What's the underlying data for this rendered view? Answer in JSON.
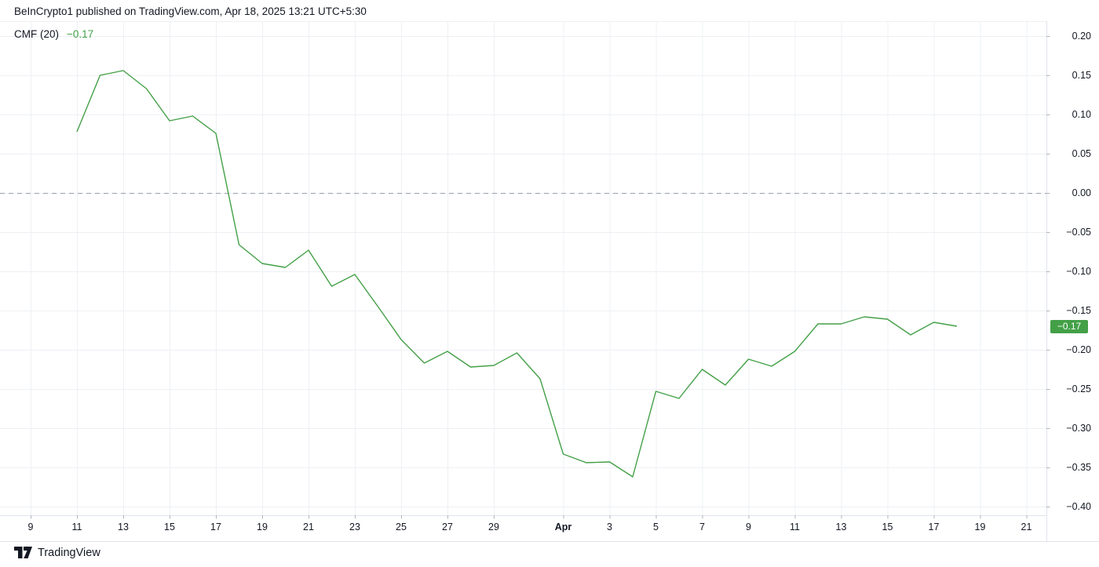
{
  "header": {
    "attribution": "BeInCrypto1 published on TradingView.com, Apr 18, 2025 13:21 UTC+5:30"
  },
  "legend": {
    "indicator": "CMF (20)",
    "value": "−0.17"
  },
  "axis_badge": {
    "text": "−0.17"
  },
  "footer": {
    "brand": "TradingView"
  },
  "colors": {
    "background": "#ffffff",
    "text": "#131722",
    "line": "#43a047",
    "legend_value": "#43a047",
    "badge_bg": "#43a047",
    "badge_text": "#ffffff",
    "grid": "#eef0f4",
    "axis_border": "#e0e3eb",
    "tick": "#b2b5be",
    "zero_line": "#9b9fa8"
  },
  "chart_data": {
    "type": "line",
    "title": "CMF (20)",
    "legend_position": "top-left",
    "grid": true,
    "zero_line_dashed": true,
    "last_value": -0.17,
    "y_axis": {
      "side": "right",
      "min": -0.4,
      "max": 0.2,
      "step": 0.05,
      "tick_values": [
        0.2,
        0.15,
        0.1,
        0.05,
        0.0,
        -0.05,
        -0.1,
        -0.15,
        -0.2,
        -0.25,
        -0.3,
        -0.35,
        -0.4
      ]
    },
    "x_axis": {
      "range": "Mar 9 – Apr 21, 2025",
      "ticks": [
        {
          "label": "9",
          "day": 0
        },
        {
          "label": "11",
          "day": 2
        },
        {
          "label": "13",
          "day": 4
        },
        {
          "label": "15",
          "day": 6
        },
        {
          "label": "17",
          "day": 8
        },
        {
          "label": "19",
          "day": 10
        },
        {
          "label": "21",
          "day": 12
        },
        {
          "label": "23",
          "day": 14
        },
        {
          "label": "25",
          "day": 16
        },
        {
          "label": "27",
          "day": 18
        },
        {
          "label": "29",
          "day": 20
        },
        {
          "label": "Apr",
          "day": 23,
          "bold": true
        },
        {
          "label": "3",
          "day": 25
        },
        {
          "label": "5",
          "day": 27
        },
        {
          "label": "7",
          "day": 29
        },
        {
          "label": "9",
          "day": 31
        },
        {
          "label": "11",
          "day": 33
        },
        {
          "label": "13",
          "day": 35
        },
        {
          "label": "15",
          "day": 37
        },
        {
          "label": "17",
          "day": 39
        },
        {
          "label": "19",
          "day": 41
        },
        {
          "label": "21",
          "day": 43
        }
      ]
    },
    "series": [
      {
        "name": "CMF (20)",
        "color": "#43a047",
        "points": [
          {
            "date": "Mar 11",
            "day": 2,
            "value": 0.078
          },
          {
            "date": "Mar 12",
            "day": 3,
            "value": 0.15
          },
          {
            "date": "Mar 13",
            "day": 4,
            "value": 0.156
          },
          {
            "date": "Mar 14",
            "day": 5,
            "value": 0.133
          },
          {
            "date": "Mar 15",
            "day": 6,
            "value": 0.092
          },
          {
            "date": "Mar 16",
            "day": 7,
            "value": 0.098
          },
          {
            "date": "Mar 17",
            "day": 8,
            "value": 0.076
          },
          {
            "date": "Mar 18",
            "day": 9,
            "value": -0.066
          },
          {
            "date": "Mar 19",
            "day": 10,
            "value": -0.09
          },
          {
            "date": "Mar 20",
            "day": 11,
            "value": -0.095
          },
          {
            "date": "Mar 21",
            "day": 12,
            "value": -0.073
          },
          {
            "date": "Mar 22",
            "day": 13,
            "value": -0.119
          },
          {
            "date": "Mar 23",
            "day": 14,
            "value": -0.104
          },
          {
            "date": "Mar 24",
            "day": 15,
            "value": -0.145
          },
          {
            "date": "Mar 25",
            "day": 16,
            "value": -0.187
          },
          {
            "date": "Mar 26",
            "day": 17,
            "value": -0.217
          },
          {
            "date": "Mar 27",
            "day": 18,
            "value": -0.202
          },
          {
            "date": "Mar 28",
            "day": 19,
            "value": -0.222
          },
          {
            "date": "Mar 29",
            "day": 20,
            "value": -0.22
          },
          {
            "date": "Mar 30",
            "day": 21,
            "value": -0.204
          },
          {
            "date": "Mar 31",
            "day": 22,
            "value": -0.237
          },
          {
            "date": "Apr 1",
            "day": 23,
            "value": -0.333
          },
          {
            "date": "Apr 2",
            "day": 24,
            "value": -0.344
          },
          {
            "date": "Apr 3",
            "day": 25,
            "value": -0.343
          },
          {
            "date": "Apr 4",
            "day": 26,
            "value": -0.362
          },
          {
            "date": "Apr 5",
            "day": 27,
            "value": -0.253
          },
          {
            "date": "Apr 6",
            "day": 28,
            "value": -0.262
          },
          {
            "date": "Apr 7",
            "day": 29,
            "value": -0.225
          },
          {
            "date": "Apr 8",
            "day": 30,
            "value": -0.245
          },
          {
            "date": "Apr 9",
            "day": 31,
            "value": -0.212
          },
          {
            "date": "Apr 10",
            "day": 32,
            "value": -0.221
          },
          {
            "date": "Apr 11",
            "day": 33,
            "value": -0.202
          },
          {
            "date": "Apr 12",
            "day": 34,
            "value": -0.167
          },
          {
            "date": "Apr 13",
            "day": 35,
            "value": -0.167
          },
          {
            "date": "Apr 14",
            "day": 36,
            "value": -0.158
          },
          {
            "date": "Apr 15",
            "day": 37,
            "value": -0.161
          },
          {
            "date": "Apr 16",
            "day": 38,
            "value": -0.181
          },
          {
            "date": "Apr 17",
            "day": 39,
            "value": -0.165
          },
          {
            "date": "Apr 18",
            "day": 40,
            "value": -0.17
          }
        ]
      }
    ]
  }
}
